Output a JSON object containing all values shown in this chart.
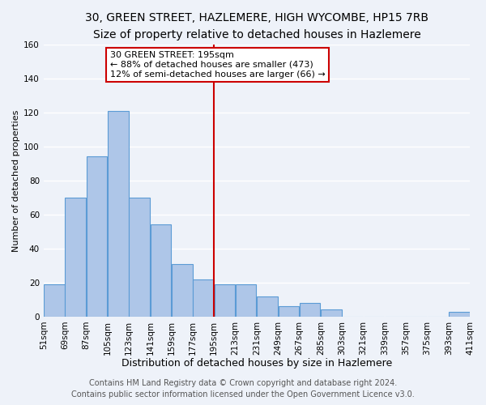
{
  "title": "30, GREEN STREET, HAZLEMERE, HIGH WYCOMBE, HP15 7RB",
  "subtitle": "Size of property relative to detached houses in Hazlemere",
  "xlabel": "Distribution of detached houses by size in Hazlemere",
  "ylabel": "Number of detached properties",
  "footer_line1": "Contains HM Land Registry data © Crown copyright and database right 2024.",
  "footer_line2": "Contains public sector information licensed under the Open Government Licence v3.0.",
  "bin_labels": [
    "51sqm",
    "69sqm",
    "87sqm",
    "105sqm",
    "123sqm",
    "141sqm",
    "159sqm",
    "177sqm",
    "195sqm",
    "213sqm",
    "231sqm",
    "249sqm",
    "267sqm",
    "285sqm",
    "303sqm",
    "321sqm",
    "339sqm",
    "357sqm",
    "375sqm",
    "393sqm",
    "411sqm"
  ],
  "bar_heights": [
    19,
    70,
    94,
    121,
    70,
    54,
    31,
    22,
    19,
    19,
    12,
    6,
    8,
    4,
    0,
    0,
    0,
    0,
    0,
    3
  ],
  "bar_color": "#aec6e8",
  "bar_edge_color": "#5b9bd5",
  "vline_color": "#cc0000",
  "annotation_text": "30 GREEN STREET: 195sqm\n← 88% of detached houses are smaller (473)\n12% of semi-detached houses are larger (66) →",
  "annotation_box_facecolor": "#ffffff",
  "annotation_box_edgecolor": "#cc0000",
  "ylim": [
    0,
    160
  ],
  "background_color": "#eef2f9",
  "plot_background": "#eef2f9",
  "grid_color": "#ffffff",
  "title_fontsize": 10,
  "subtitle_fontsize": 9,
  "xlabel_fontsize": 9,
  "ylabel_fontsize": 8,
  "tick_fontsize": 7.5,
  "annot_fontsize": 8,
  "footer_fontsize": 7
}
